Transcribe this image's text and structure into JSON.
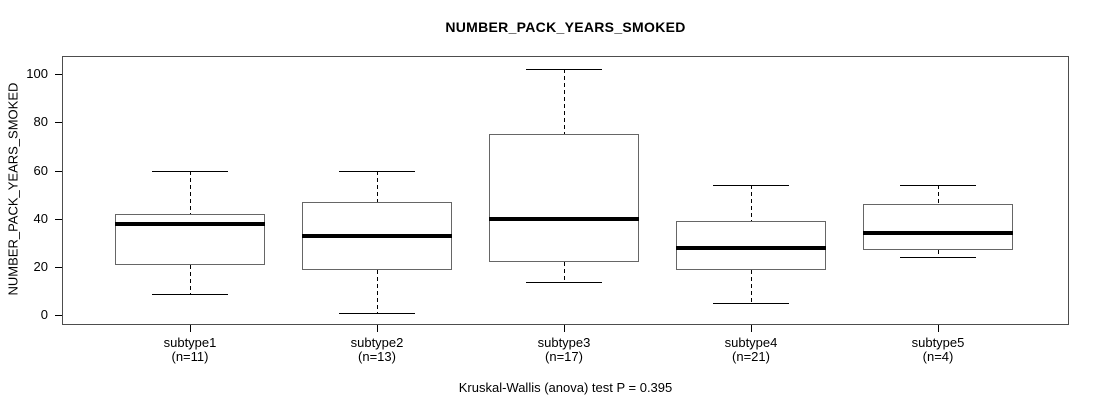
{
  "caption": "Kruskal-Wallis (anova) test P = 0.395",
  "chart_data": {
    "type": "boxplot",
    "title": "NUMBER_PACK_YEARS_SMOKED",
    "ylabel": "NUMBER_PACK_YEARS_SMOKED",
    "xlabel": "",
    "y_ticks": [
      0,
      20,
      40,
      60,
      80,
      100
    ],
    "ylim": [
      -4,
      107.5
    ],
    "grid": false,
    "legend": false,
    "annotation": "Kruskal-Wallis (anova) test P = 0.395",
    "test": "Kruskal-Wallis (anova)",
    "p_value": 0.395,
    "groups": [
      {
        "label": "subtype1",
        "n": 11,
        "n_label": "(n=11)",
        "whisker_low": 9,
        "q1": 21,
        "median": 38,
        "q3": 42,
        "whisker_high": 60
      },
      {
        "label": "subtype2",
        "n": 13,
        "n_label": "(n=13)",
        "whisker_low": 1,
        "q1": 19,
        "median": 33,
        "q3": 47,
        "whisker_high": 60
      },
      {
        "label": "subtype3",
        "n": 17,
        "n_label": "(n=17)",
        "whisker_low": 14,
        "q1": 22,
        "median": 40,
        "q3": 75,
        "whisker_high": 102
      },
      {
        "label": "subtype4",
        "n": 21,
        "n_label": "(n=21)",
        "whisker_low": 5,
        "q1": 19,
        "median": 28,
        "q3": 39,
        "whisker_high": 54
      },
      {
        "label": "subtype5",
        "n": 4,
        "n_label": "(n=4)",
        "whisker_low": 24,
        "q1": 27,
        "median": 34,
        "q3": 46,
        "whisker_high": 54
      }
    ],
    "colors": {
      "line": "#000000",
      "box_border": "#666666",
      "box_fill": "#ffffff",
      "frame": "#4d4d4d",
      "background": "#ffffff",
      "text": "#000000"
    }
  }
}
